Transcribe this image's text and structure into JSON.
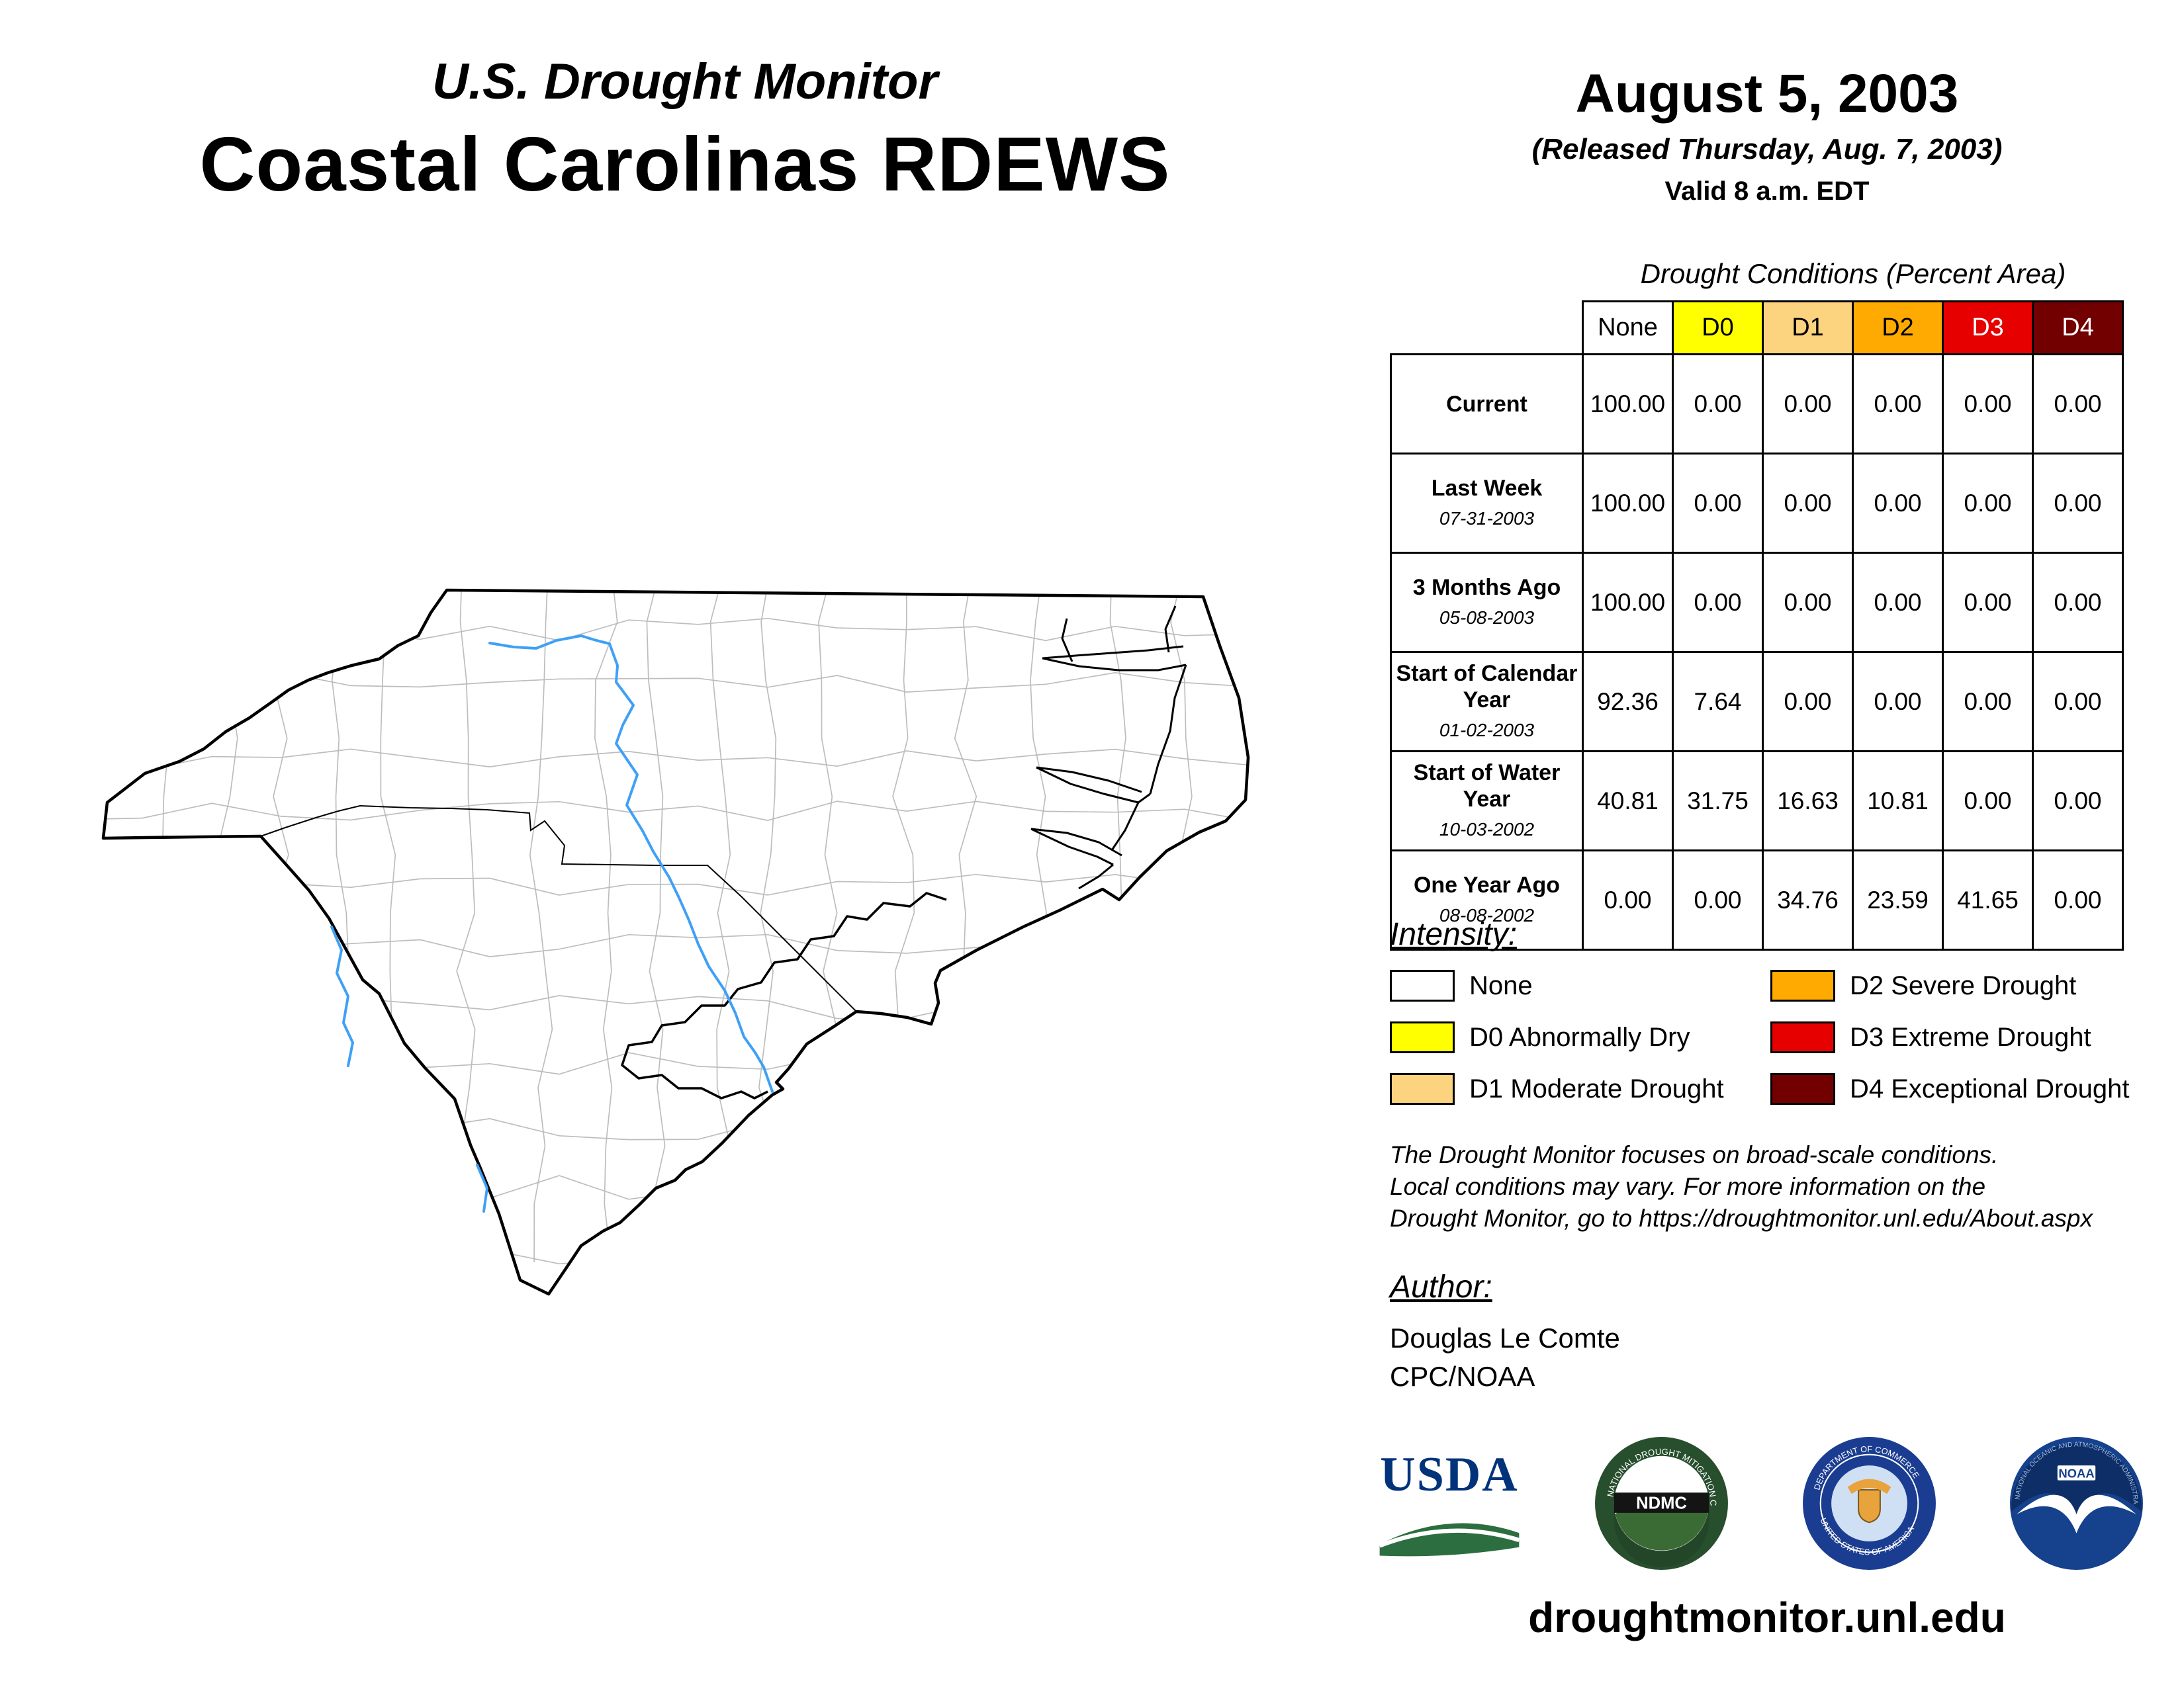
{
  "header": {
    "kicker": "U.S. Drought Monitor",
    "title": "Coastal Carolinas RDEWS",
    "date": "August 5, 2003",
    "released": "(Released Thursday, Aug. 7, 2003)",
    "valid": "Valid 8 a.m. EDT"
  },
  "table": {
    "title": "Drought Conditions (Percent Area)",
    "columns": [
      "None",
      "D0",
      "D1",
      "D2",
      "D3",
      "D4"
    ],
    "rows": [
      {
        "label": "Current",
        "date": "",
        "values": [
          "100.00",
          "0.00",
          "0.00",
          "0.00",
          "0.00",
          "0.00"
        ]
      },
      {
        "label": "Last Week",
        "date": "07-31-2003",
        "values": [
          "100.00",
          "0.00",
          "0.00",
          "0.00",
          "0.00",
          "0.00"
        ]
      },
      {
        "label": "3 Months Ago",
        "date": "05-08-2003",
        "values": [
          "100.00",
          "0.00",
          "0.00",
          "0.00",
          "0.00",
          "0.00"
        ]
      },
      {
        "label": "Start of Calendar Year",
        "date": "01-02-2003",
        "values": [
          "92.36",
          "7.64",
          "0.00",
          "0.00",
          "0.00",
          "0.00"
        ]
      },
      {
        "label": "Start of Water Year",
        "date": "10-03-2002",
        "values": [
          "40.81",
          "31.75",
          "16.63",
          "10.81",
          "0.00",
          "0.00"
        ]
      },
      {
        "label": "One Year Ago",
        "date": "08-08-2002",
        "values": [
          "0.00",
          "0.00",
          "34.76",
          "23.59",
          "41.65",
          "0.00"
        ]
      }
    ]
  },
  "colors": {
    "none": "#FFFFFF",
    "d0": "#FFFF00",
    "d1": "#FCD37F",
    "d2": "#FFAA00",
    "d3": "#E60000",
    "d4": "#730000"
  },
  "legend": {
    "title": "Intensity:",
    "items": [
      {
        "label": "None"
      },
      {
        "label": "D0 Abnormally Dry"
      },
      {
        "label": "D1 Moderate Drought"
      },
      {
        "label": "D2 Severe Drought"
      },
      {
        "label": "D3 Extreme Drought"
      },
      {
        "label": "D4 Exceptional Drought"
      }
    ]
  },
  "disclaimer": [
    "The Drought Monitor focuses on broad-scale conditions.",
    "Local conditions may vary. For more information on the",
    "Drought Monitor, go to https://droughtmonitor.unl.edu/About.aspx"
  ],
  "author": {
    "title": "Author:",
    "name": "Douglas Le Comte",
    "org": "CPC/NOAA"
  },
  "logos": {
    "usda_label": "USDA",
    "ndmc_label": "NDMC",
    "noaa_label": "NOAA"
  },
  "footer": {
    "url": "droughtmonitor.unl.edu"
  },
  "chart_data": {
    "type": "table",
    "title": "Drought Conditions (Percent Area)",
    "columns": [
      "None",
      "D0",
      "D1",
      "D2",
      "D3",
      "D4"
    ],
    "rows": [
      {
        "period": "Current",
        "values": [
          100.0,
          0.0,
          0.0,
          0.0,
          0.0,
          0.0
        ]
      },
      {
        "period": "Last Week 07-31-2003",
        "values": [
          100.0,
          0.0,
          0.0,
          0.0,
          0.0,
          0.0
        ]
      },
      {
        "period": "3 Months Ago 05-08-2003",
        "values": [
          100.0,
          0.0,
          0.0,
          0.0,
          0.0,
          0.0
        ]
      },
      {
        "period": "Start of Calendar Year 01-02-2003",
        "values": [
          92.36,
          7.64,
          0.0,
          0.0,
          0.0,
          0.0
        ]
      },
      {
        "period": "Start of Water Year 10-03-2002",
        "values": [
          40.81,
          31.75,
          16.63,
          10.81,
          0.0,
          0.0
        ]
      },
      {
        "period": "One Year Ago 08-08-2002",
        "values": [
          0.0,
          0.0,
          34.76,
          23.59,
          41.65,
          0.0
        ]
      }
    ]
  }
}
